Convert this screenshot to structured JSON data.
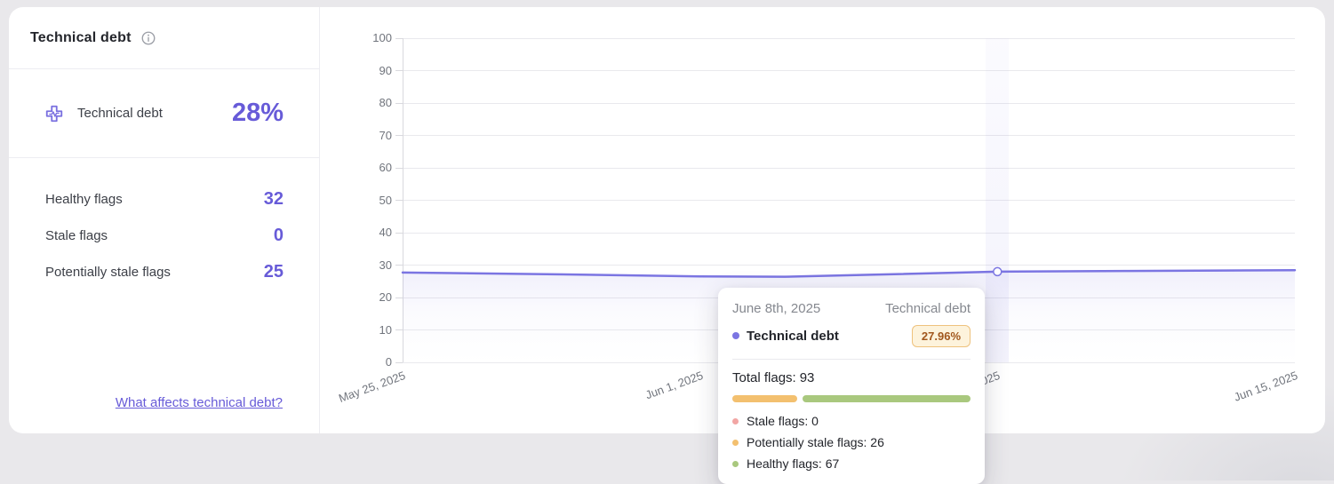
{
  "panel": {
    "title": "Technical debt",
    "metric": {
      "label": "Technical debt",
      "value": "28%"
    },
    "flags": [
      {
        "label": "Healthy flags",
        "value": "32"
      },
      {
        "label": "Stale flags",
        "value": "0"
      },
      {
        "label": "Potentially stale flags",
        "value": "25"
      }
    ],
    "link_label": "What affects technical debt?"
  },
  "chart_data": {
    "type": "line",
    "title": "",
    "xlabel": "",
    "ylabel": "",
    "ylim": [
      0,
      100
    ],
    "y_ticks": [
      0,
      10,
      20,
      30,
      40,
      50,
      60,
      70,
      80,
      90,
      100
    ],
    "grid": "horizontal",
    "legend": "none",
    "x_max_day": 21,
    "x_ticks": [
      {
        "day": 0,
        "label": "May 25, 2025"
      },
      {
        "day": 7,
        "label": "Jun 1, 2025"
      },
      {
        "day": 14,
        "label": "Jun 8, 2025"
      },
      {
        "day": 21,
        "label": "Jun 15, 2025"
      }
    ],
    "series": [
      {
        "name": "Technical debt",
        "points": [
          {
            "day": 0,
            "value": 27.7
          },
          {
            "day": 4,
            "value": 27.1
          },
          {
            "day": 7,
            "value": 26.5
          },
          {
            "day": 9,
            "value": 26.4
          },
          {
            "day": 11,
            "value": 27.0
          },
          {
            "day": 14,
            "value": 27.96
          },
          {
            "day": 17,
            "value": 28.2
          },
          {
            "day": 21,
            "value": 28.4
          }
        ]
      }
    ],
    "hover_point": {
      "day": 14,
      "value": 27.96
    }
  },
  "tooltip": {
    "date": "June 8th, 2025",
    "column_title": "Technical debt",
    "series_name": "Technical debt",
    "value_badge": "27.96%",
    "total_label": "Total flags:",
    "total_value": "93",
    "breakdown": [
      {
        "label": "Stale flags:",
        "value": 0,
        "color": "#f2a6a4"
      },
      {
        "label": "Potentially stale flags:",
        "value": 26,
        "color": "#f3c06f"
      },
      {
        "label": "Healthy flags:",
        "value": 67,
        "color": "#a9c87e"
      }
    ]
  },
  "colors": {
    "accent": "#675bd8",
    "line": "#7b75e2",
    "badge_bg": "#fdf3dc",
    "badge_border": "#eec27d",
    "badge_text": "#a1571d",
    "stale": "#f2a6a4",
    "potentially_stale": "#f3c06f",
    "healthy": "#a9c87e",
    "page_bg": "#e9e8eb",
    "card_bg": "#ffffff"
  }
}
